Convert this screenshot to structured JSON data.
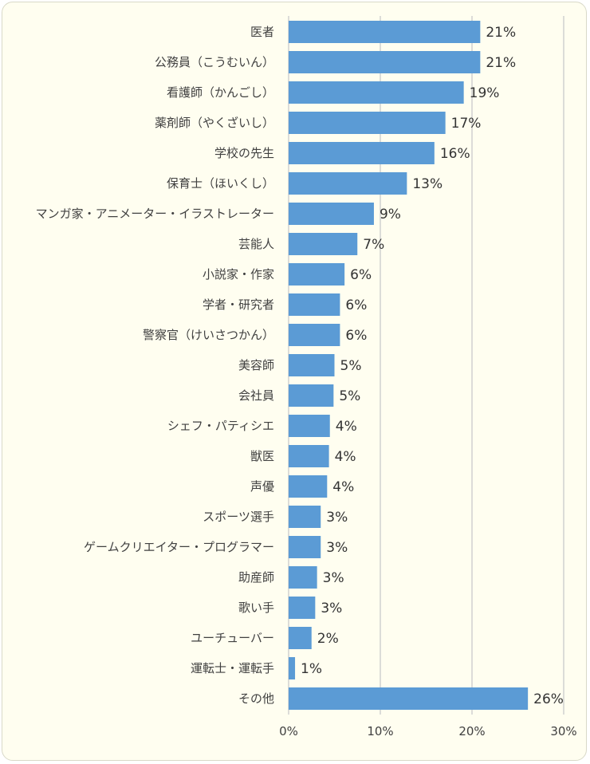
{
  "chart_data": {
    "type": "bar",
    "orientation": "horizontal",
    "categories": [
      "医者",
      "公務員（こうむいん）",
      "看護師（かんごし）",
      "薬剤師（やくざいし）",
      "学校の先生",
      "保育士（ほいくし）",
      "マンガ家・アニメーター・イラストレーター",
      "芸能人",
      "小説家・作家",
      "学者・研究者",
      "警察官（けいさつかん）",
      "美容師",
      "会社員",
      "シェフ・パティシエ",
      "獣医",
      "声優",
      "スポーツ選手",
      "ゲームクリエイター・プログラマー",
      "助産師",
      "歌い手",
      "ユーチューバー",
      "運転士・運転手",
      "その他"
    ],
    "values": [
      21,
      21,
      19,
      17,
      16,
      13,
      9,
      7,
      6,
      6,
      6,
      5,
      5,
      4,
      4,
      4,
      3,
      3,
      3,
      3,
      2,
      1,
      26
    ],
    "value_labels": [
      "21%",
      "21%",
      "19%",
      "17%",
      "16%",
      "13%",
      "9%",
      "7%",
      "6%",
      "6%",
      "6%",
      "5%",
      "5%",
      "4%",
      "4%",
      "4%",
      "3%",
      "3%",
      "3%",
      "3%",
      "2%",
      "1%",
      "26%"
    ],
    "bar_values": [
      20.9,
      20.9,
      19.1,
      17.1,
      15.9,
      12.9,
      9.3,
      7.5,
      6.1,
      5.6,
      5.6,
      5.0,
      4.9,
      4.5,
      4.4,
      4.2,
      3.5,
      3.5,
      3.1,
      2.9,
      2.5,
      0.7,
      26.1
    ],
    "x_ticks": [
      "0%",
      "10%",
      "20%",
      "30%"
    ],
    "x_tick_values": [
      0,
      10,
      20,
      30
    ],
    "xlim": [
      0,
      30
    ],
    "grid": true,
    "bar_color": "#5b9bd5",
    "title": "",
    "xlabel": "",
    "ylabel": ""
  }
}
